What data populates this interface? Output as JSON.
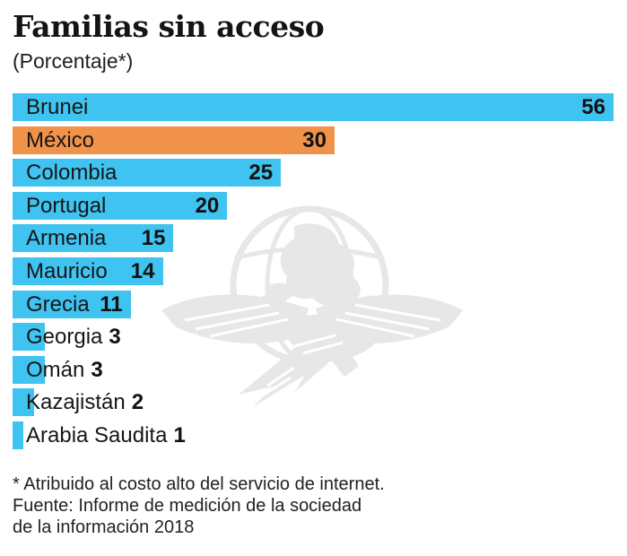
{
  "header": {
    "title": "Familias sin acceso",
    "subtitle": "(Porcentaje*)"
  },
  "chart_data": {
    "type": "bar",
    "orientation": "horizontal",
    "title": "Familias sin acceso",
    "subtitle": "(Porcentaje*)",
    "categories": [
      "Brunei",
      "México",
      "Colombia",
      "Portugal",
      "Armenia",
      "Mauricio",
      "Grecia",
      "Georgia",
      "Omán",
      "Kazajistán",
      "Arabia Saudita"
    ],
    "values": [
      56,
      30,
      25,
      20,
      15,
      14,
      11,
      3,
      3,
      2,
      1
    ],
    "highlighted_category": "México",
    "xlim": [
      0,
      56
    ],
    "value_labels": true,
    "grid": false,
    "legend": false
  },
  "colors": {
    "bar": "#3FC3F0",
    "highlight_bar": "#F0924A",
    "text": "#1b1b1b",
    "watermark": "#e7e7e7"
  },
  "footer": {
    "lines": [
      "* Atribuido al costo alto del servicio de internet.",
      "Fuente: Informe de medición de la sociedad",
      "de la información 2018"
    ]
  },
  "watermark": {
    "icon": "eagle-globe-watermark"
  }
}
